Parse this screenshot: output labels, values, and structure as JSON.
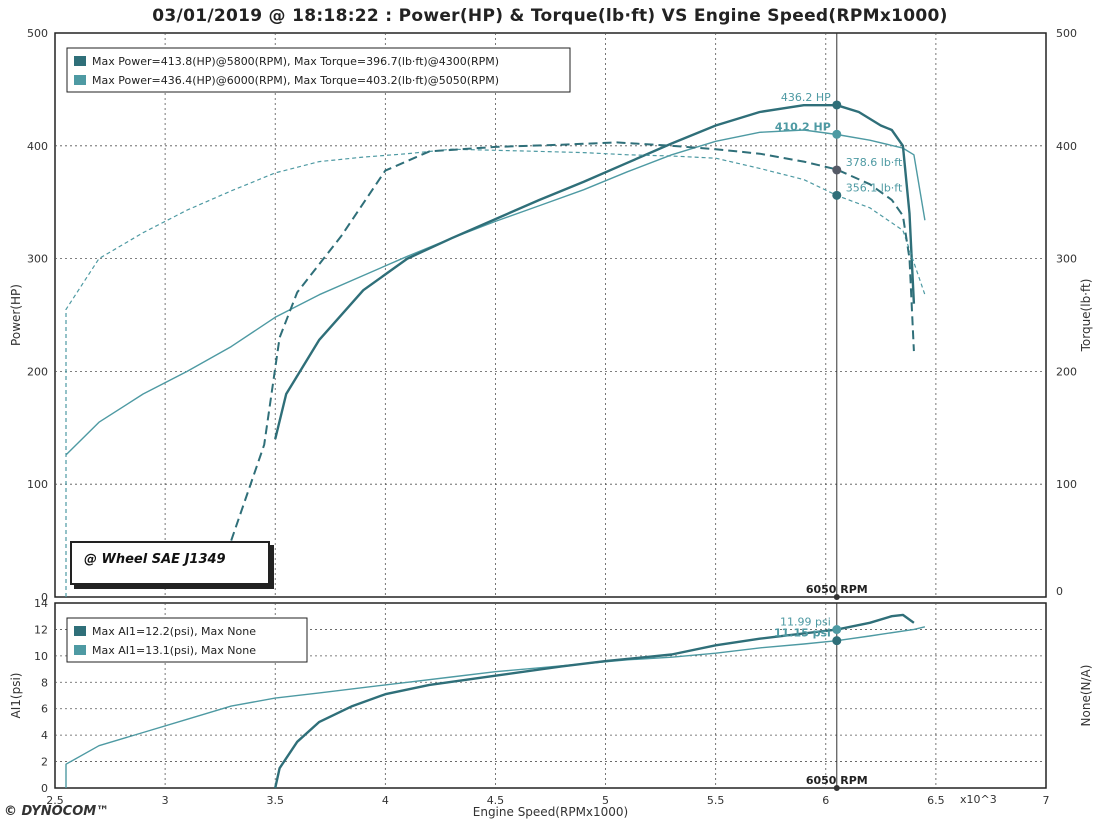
{
  "title": "03/01/2019 @ 18:18:22 : Power(HP) & Torque(lb·ft) VS Engine Speed(RPMx1000)",
  "logo": "© DYNOCOM™",
  "units_note": "x10^3",
  "stamp": "@ Wheel SAE J1349",
  "colors": {
    "run1": "#2f6f79",
    "run2": "#4e9aa3",
    "grid": "#555555",
    "frame": "#222222"
  },
  "chart_data": [
    {
      "type": "line",
      "title": "Power(HP) & Torque(lb·ft) VS Engine Speed(RPMx1000)",
      "xlabel": "Engine Speed(RPMx1000)",
      "ylabel": "Power(HP)",
      "y2label": "Torque(lb·ft)",
      "xlim": [
        2.5,
        7
      ],
      "ylim": [
        0,
        500
      ],
      "y2lim": [
        0,
        500
      ],
      "xticks": [
        "2.5",
        "3",
        "3.5",
        "4",
        "4.5",
        "5",
        "5.5",
        "6",
        "6.5",
        "7"
      ],
      "yticks": [
        "0",
        "100",
        "200",
        "300",
        "400",
        "500"
      ],
      "y2ticks": [
        "0",
        "100",
        "200",
        "300",
        "400",
        "500"
      ],
      "grid": true,
      "legend": {
        "position": "top-left",
        "entries": [
          "Max Power=413.8(HP)@5800(RPM), Max Torque=396.7(lb·ft)@4300(RPM)",
          "Max Power=436.4(HP)@6000(RPM), Max Torque=403.2(lb·ft)@5050(RPM)"
        ]
      },
      "cursor": {
        "x": 6.05,
        "label": "6050 RPM"
      },
      "markers": [
        {
          "y": 436.2,
          "label": "436.2 HP"
        },
        {
          "y": 410.2,
          "label": "410.2 HP"
        },
        {
          "y": 378.6,
          "label": "378.6 lb·ft"
        },
        {
          "y": 356.1,
          "label": "356.1 lb·ft"
        }
      ],
      "series": [
        {
          "role": "power-run1",
          "values": [
            [
              2.55,
              126
            ],
            [
              2.7,
              155
            ],
            [
              2.9,
              180
            ],
            [
              3.1,
              200
            ],
            [
              3.3,
              222
            ],
            [
              3.5,
              248
            ],
            [
              3.7,
              268
            ],
            [
              3.9,
              285
            ],
            [
              4.1,
              302
            ],
            [
              4.3,
              318
            ],
            [
              4.5,
              333
            ],
            [
              4.7,
              347
            ],
            [
              4.9,
              361
            ],
            [
              5.1,
              377
            ],
            [
              5.3,
              392
            ],
            [
              5.5,
              404
            ],
            [
              5.7,
              412
            ],
            [
              5.9,
              414
            ],
            [
              6.05,
              410
            ],
            [
              6.2,
              405
            ],
            [
              6.35,
              398
            ],
            [
              6.4,
              392
            ],
            [
              6.45,
              334
            ]
          ]
        },
        {
          "role": "power-run2",
          "values": [
            [
              3.5,
              140
            ],
            [
              3.55,
              180
            ],
            [
              3.7,
              228
            ],
            [
              3.9,
              272
            ],
            [
              4.1,
              300
            ],
            [
              4.3,
              318
            ],
            [
              4.5,
              335
            ],
            [
              4.7,
              352
            ],
            [
              4.9,
              368
            ],
            [
              5.1,
              385
            ],
            [
              5.3,
              402
            ],
            [
              5.5,
              418
            ],
            [
              5.7,
              430
            ],
            [
              5.9,
              436
            ],
            [
              6.05,
              436
            ],
            [
              6.15,
              430
            ],
            [
              6.25,
              418
            ],
            [
              6.3,
              414
            ],
            [
              6.35,
              400
            ],
            [
              6.38,
              340
            ],
            [
              6.4,
              260
            ]
          ]
        },
        {
          "role": "torque-run1",
          "values": [
            [
              2.55,
              0
            ],
            [
              2.55,
              255
            ],
            [
              2.7,
              300
            ],
            [
              2.9,
              323
            ],
            [
              3.1,
              343
            ],
            [
              3.3,
              360
            ],
            [
              3.5,
              376
            ],
            [
              3.7,
              386
            ],
            [
              3.9,
              390
            ],
            [
              4.1,
              393
            ],
            [
              4.3,
              397
            ],
            [
              4.5,
              396
            ],
            [
              4.7,
              395
            ],
            [
              4.9,
              394
            ],
            [
              5.1,
              392
            ],
            [
              5.3,
              391
            ],
            [
              5.5,
              389
            ],
            [
              5.7,
              380
            ],
            [
              5.9,
              370
            ],
            [
              6.05,
              356
            ],
            [
              6.2,
              345
            ],
            [
              6.35,
              325
            ],
            [
              6.45,
              268
            ]
          ]
        },
        {
          "role": "torque-run2",
          "values": [
            [
              3.3,
              50
            ],
            [
              3.45,
              135
            ],
            [
              3.52,
              230
            ],
            [
              3.6,
              270
            ],
            [
              3.8,
              320
            ],
            [
              4.0,
              378
            ],
            [
              4.2,
              395
            ],
            [
              4.5,
              399
            ],
            [
              4.8,
              401
            ],
            [
              5.05,
              403
            ],
            [
              5.3,
              400
            ],
            [
              5.5,
              397
            ],
            [
              5.7,
              393
            ],
            [
              5.9,
              386
            ],
            [
              6.05,
              379
            ],
            [
              6.2,
              366
            ],
            [
              6.3,
              352
            ],
            [
              6.35,
              338
            ],
            [
              6.38,
              300
            ],
            [
              6.4,
              218
            ]
          ]
        }
      ]
    },
    {
      "type": "line",
      "ylabel": "AI1(psi)",
      "y2label": "None(N/A)",
      "xlim": [
        2.5,
        7
      ],
      "ylim": [
        0,
        14
      ],
      "yticks": [
        "0",
        "2",
        "4",
        "6",
        "8",
        "10",
        "12",
        "14"
      ],
      "grid": true,
      "legend": {
        "position": "top-left",
        "entries": [
          "Max AI1=12.2(psi), Max None",
          "Max AI1=13.1(psi), Max None"
        ]
      },
      "cursor": {
        "x": 6.05,
        "label": "6050 RPM"
      },
      "markers": [
        {
          "y": 11.99,
          "label": "11.99 psi"
        },
        {
          "y": 11.15,
          "label": "11.15 psi"
        }
      ],
      "series": [
        {
          "role": "ai1-run1",
          "values": [
            [
              2.55,
              0
            ],
            [
              2.55,
              1.8
            ],
            [
              2.7,
              3.2
            ],
            [
              2.9,
              4.2
            ],
            [
              3.1,
              5.2
            ],
            [
              3.3,
              6.2
            ],
            [
              3.5,
              6.8
            ],
            [
              3.7,
              7.2
            ],
            [
              3.9,
              7.6
            ],
            [
              4.1,
              8.0
            ],
            [
              4.3,
              8.4
            ],
            [
              4.5,
              8.8
            ],
            [
              4.7,
              9.1
            ],
            [
              4.9,
              9.4
            ],
            [
              5.1,
              9.7
            ],
            [
              5.3,
              9.9
            ],
            [
              5.5,
              10.2
            ],
            [
              5.7,
              10.6
            ],
            [
              5.9,
              10.9
            ],
            [
              6.05,
              11.15
            ],
            [
              6.2,
              11.5
            ],
            [
              6.4,
              12.0
            ],
            [
              6.45,
              12.2
            ]
          ]
        },
        {
          "role": "ai1-run2",
          "values": [
            [
              3.5,
              0
            ],
            [
              3.52,
              1.5
            ],
            [
              3.6,
              3.5
            ],
            [
              3.7,
              5.0
            ],
            [
              3.85,
              6.2
            ],
            [
              4.0,
              7.1
            ],
            [
              4.2,
              7.8
            ],
            [
              4.5,
              8.5
            ],
            [
              4.8,
              9.2
            ],
            [
              5.0,
              9.6
            ],
            [
              5.3,
              10.1
            ],
            [
              5.5,
              10.8
            ],
            [
              5.7,
              11.3
            ],
            [
              5.9,
              11.7
            ],
            [
              6.05,
              11.99
            ],
            [
              6.2,
              12.5
            ],
            [
              6.3,
              13.0
            ],
            [
              6.35,
              13.1
            ],
            [
              6.4,
              12.5
            ]
          ]
        }
      ]
    }
  ]
}
